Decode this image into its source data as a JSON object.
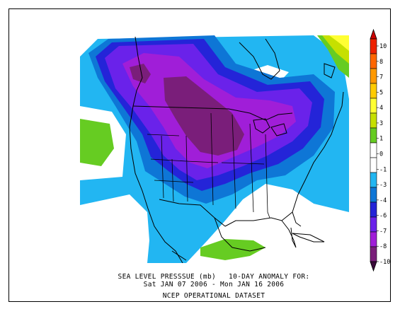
{
  "map": {
    "type": "sea-level-pressure-anomaly",
    "region": "North America"
  },
  "colorbar": {
    "tick_labels": [
      "10",
      "8",
      "7",
      "5",
      "4",
      "3",
      "1",
      "0",
      "-1",
      "-3",
      "-4",
      "-6",
      "-7",
      "-8",
      "-10"
    ],
    "segment_colors": [
      "#ee2200",
      "#ff6600",
      "#ff9900",
      "#ffcc00",
      "#ffff33",
      "#c6e000",
      "#66cc22",
      "#ffffff",
      "#ffffff",
      "#22b6f2",
      "#0e76d6",
      "#2424d8",
      "#6a22ea",
      "#a01ed8",
      "#7a1e7a"
    ],
    "top_arrow_color": "#cc0000",
    "bottom_arrow_color": "#3a0a3a"
  },
  "caption": {
    "line1": "SEA LEVEL PRESSSUE (mb)   10-DAY ANOMALY FOR:",
    "line2": "Sat JAN 07 2006 - Mon JAN 16 2006",
    "line3": "NCEP OPERATIONAL DATASET"
  }
}
